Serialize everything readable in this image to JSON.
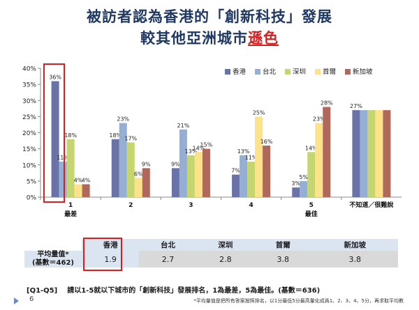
{
  "slide": {
    "title_line1": "被訪者認為香港的「創新科技」發展",
    "title_line2_main": "較其他亞洲城市",
    "title_line2_highlight": "遜色",
    "page_number": "6",
    "footnote": "*平均量值是把所有答案按照排名，以1分最低5分最高量化成爲1、2、3、4、5分，再求取平均數",
    "question_code": "[Q1-Q5]",
    "question_text": "請以1-5就以下城市的「創新科技」發展排名，1為最差，5為最佳。(基數＝636)"
  },
  "chart_data": {
    "type": "bar",
    "categories": [
      "1\n最差",
      "2",
      "3",
      "4",
      "5\n最佳",
      "不知道／很難說"
    ],
    "series": [
      {
        "name": "香港",
        "color": "#6a73a8",
        "values": [
          36,
          18,
          9,
          7,
          3,
          27
        ]
      },
      {
        "name": "台北",
        "color": "#94aed4",
        "values": [
          11,
          23,
          21,
          13,
          5,
          27
        ]
      },
      {
        "name": "深圳",
        "color": "#c5d671",
        "values": [
          18,
          17,
          13,
          11,
          14,
          27
        ]
      },
      {
        "name": "首爾",
        "color": "#fde28a",
        "values": [
          4,
          6,
          14,
          25,
          23,
          27
        ]
      },
      {
        "name": "新加坡",
        "color": "#b0685a",
        "values": [
          4,
          9,
          15,
          16,
          28,
          27
        ]
      }
    ],
    "data_labels": [
      [
        "36%",
        "18%",
        "9%",
        "7%",
        "3%",
        "27%"
      ],
      [
        "11%",
        "23%",
        "21%",
        "13%",
        "5%",
        ""
      ],
      [
        "18%",
        "17%",
        "13%",
        "11%",
        "14%",
        ""
      ],
      [
        "4%",
        "6%",
        "14%",
        "25%",
        "23%",
        ""
      ],
      [
        "4%",
        "9%",
        "15%",
        "16%",
        "28%",
        ""
      ]
    ],
    "ylim": [
      0,
      40
    ],
    "yticks": [
      "0%",
      "5%",
      "10%",
      "15%",
      "20%",
      "25%",
      "30%",
      "35%",
      "40%"
    ],
    "legend_position": "top-right",
    "grid": false
  },
  "summary_table": {
    "row_label": "平均量值*\n(基數＝462)",
    "columns": [
      "香港",
      "台北",
      "深圳",
      "首爾",
      "新加坡"
    ],
    "values": [
      "1.9",
      "2.7",
      "2.8",
      "3.8",
      "3.8"
    ]
  },
  "colors": {
    "title": "#1f3864",
    "highlight": "#d42020",
    "table_header": "#dbe5f1",
    "table_values": "#d9d9d9"
  }
}
